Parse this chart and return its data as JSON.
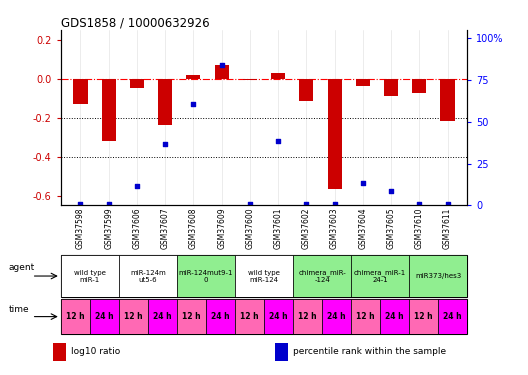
{
  "title": "GDS1858 / 10000632926",
  "samples": [
    "GSM37598",
    "GSM37599",
    "GSM37606",
    "GSM37607",
    "GSM37608",
    "GSM37609",
    "GSM37600",
    "GSM37601",
    "GSM37602",
    "GSM37603",
    "GSM37604",
    "GSM37605",
    "GSM37610",
    "GSM37611"
  ],
  "log10_ratio": [
    -0.13,
    -0.32,
    -0.045,
    -0.235,
    0.02,
    0.07,
    -0.005,
    0.03,
    -0.115,
    -0.565,
    -0.035,
    -0.09,
    -0.075,
    -0.215
  ],
  "percentile_rank": [
    1,
    1,
    11,
    35,
    58,
    80,
    1,
    37,
    1,
    1,
    13,
    8,
    1,
    1
  ],
  "agents": [
    {
      "label": "wild type\nmiR-1",
      "span": [
        0,
        2
      ],
      "color": "#ffffff"
    },
    {
      "label": "miR-124m\nut5-6",
      "span": [
        2,
        4
      ],
      "color": "#ffffff"
    },
    {
      "label": "miR-124mut9-1\n0",
      "span": [
        4,
        6
      ],
      "color": "#90ee90"
    },
    {
      "label": "wild type\nmiR-124",
      "span": [
        6,
        8
      ],
      "color": "#ffffff"
    },
    {
      "label": "chimera_miR-\n-124",
      "span": [
        8,
        10
      ],
      "color": "#90ee90"
    },
    {
      "label": "chimera_miR-1\n24-1",
      "span": [
        10,
        12
      ],
      "color": "#90ee90"
    },
    {
      "label": "miR373/hes3",
      "span": [
        12,
        14
      ],
      "color": "#90ee90"
    }
  ],
  "times": [
    "12 h",
    "24 h",
    "12 h",
    "24 h",
    "12 h",
    "24 h",
    "12 h",
    "24 h",
    "12 h",
    "24 h",
    "12 h",
    "24 h",
    "12 h",
    "24 h"
  ],
  "time_colors_12": "#ff69b4",
  "time_colors_24": "#ff00ff",
  "bar_color": "#cc0000",
  "dot_color": "#0000cc",
  "ylim_left": [
    -0.65,
    0.25
  ],
  "ylim_right": [
    0,
    105
  ],
  "yticks_left": [
    0.2,
    0.0,
    -0.2,
    -0.4,
    -0.6
  ],
  "yticks_right": [
    100,
    75,
    50,
    25,
    0
  ],
  "hline_y": 0.0,
  "dotted_lines": [
    -0.2,
    -0.4
  ],
  "legend_items": [
    {
      "color": "#cc0000",
      "label": "log10 ratio"
    },
    {
      "color": "#0000cc",
      "label": "percentile rank within the sample"
    }
  ],
  "bg_color": "#ffffff",
  "label_color_left": "#cc0000",
  "label_color_right": "#0000ff"
}
